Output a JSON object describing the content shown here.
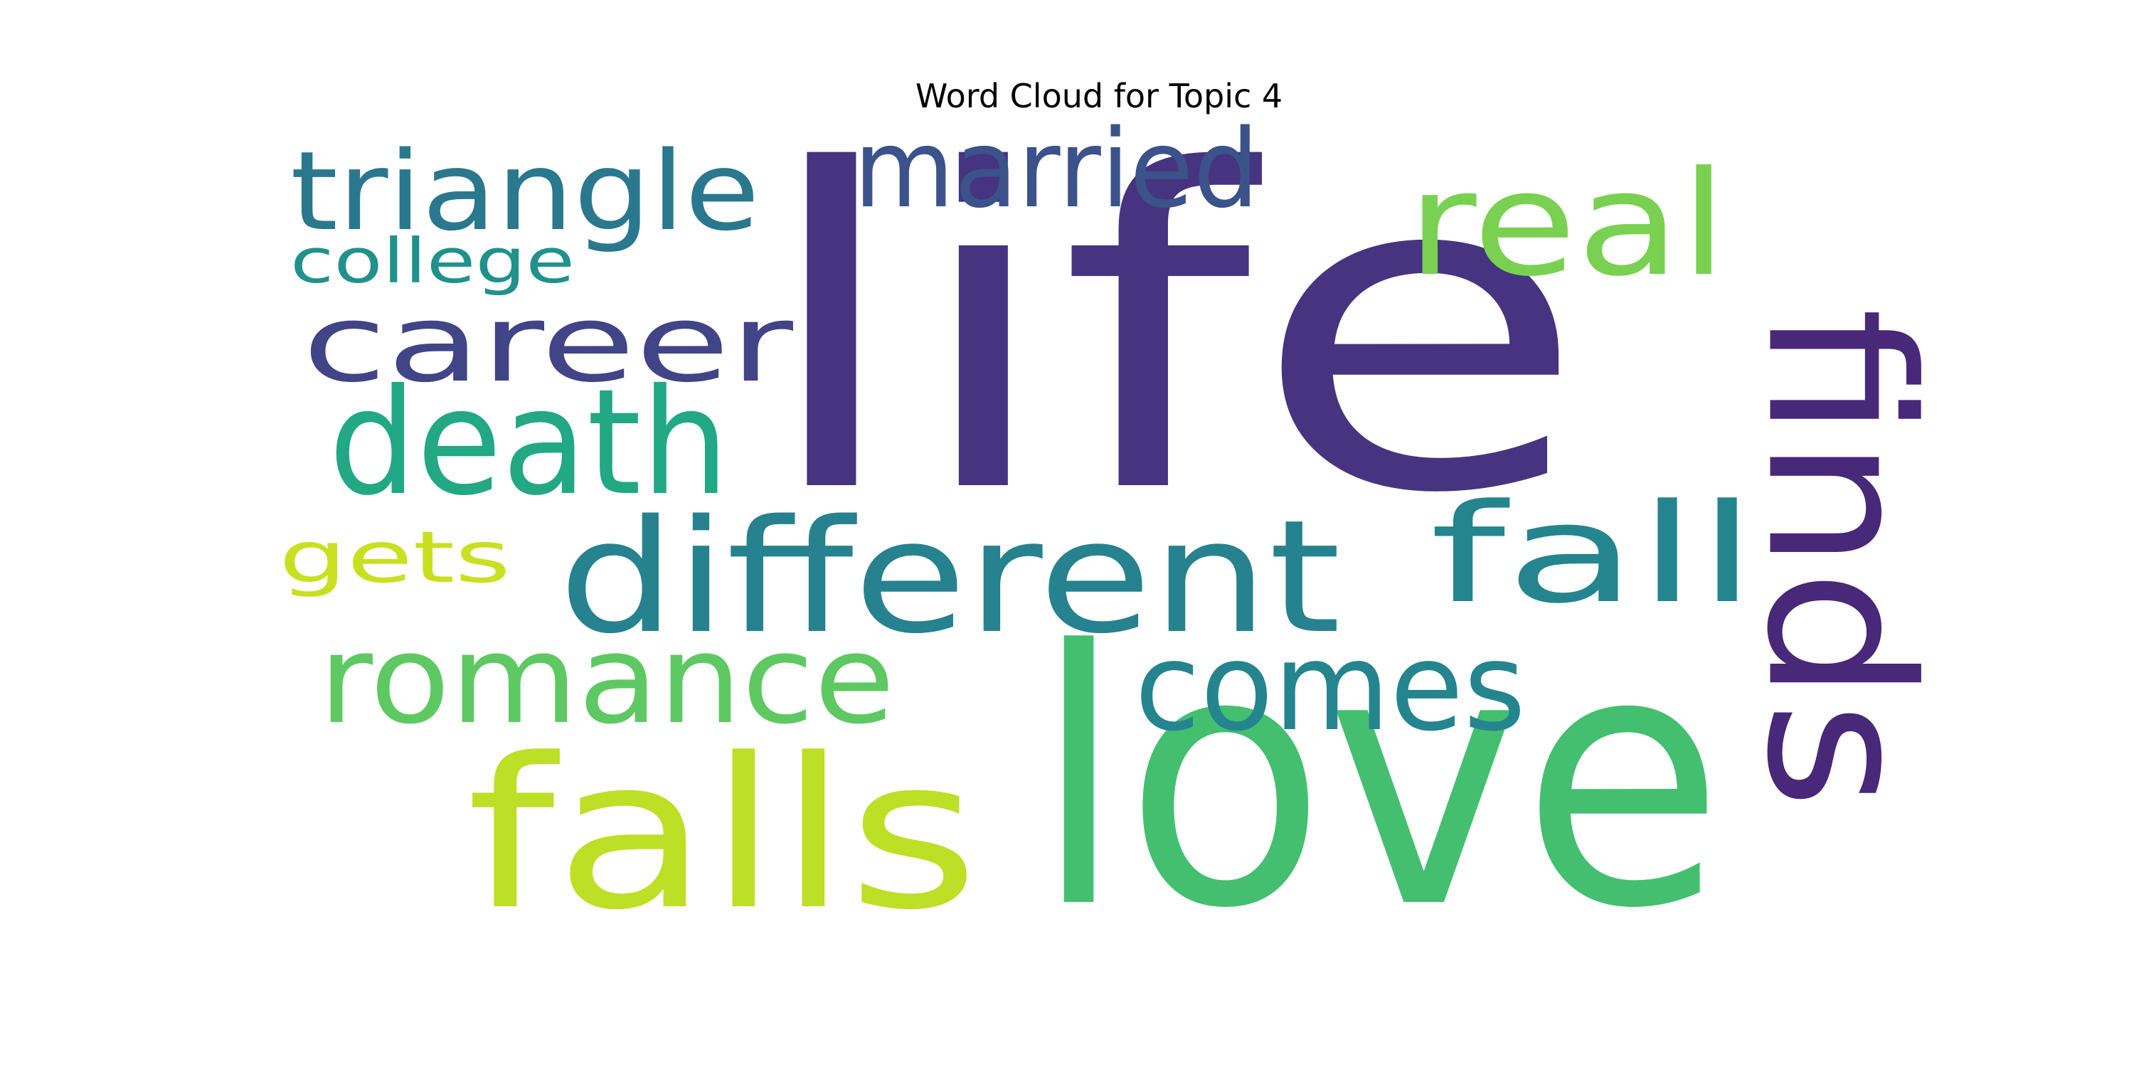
{
  "chart_data": {
    "type": "wordcloud",
    "title": "Word Cloud for Topic 4",
    "words": [
      {
        "text": "life",
        "weight": 1.0,
        "orientation": "horizontal",
        "color": "#463480"
      },
      {
        "text": "love",
        "weight": 0.88,
        "orientation": "horizontal",
        "color": "#44bf70"
      },
      {
        "text": "falls",
        "weight": 0.6,
        "orientation": "horizontal",
        "color": "#bddf26"
      },
      {
        "text": "finds",
        "weight": 0.52,
        "orientation": "vertical",
        "color": "#482878"
      },
      {
        "text": "different",
        "weight": 0.48,
        "orientation": "horizontal",
        "color": "#26828e"
      },
      {
        "text": "comes",
        "weight": 0.43,
        "orientation": "horizontal",
        "color": "#25858e"
      },
      {
        "text": "fall",
        "weight": 0.43,
        "orientation": "horizontal",
        "color": "#25858e"
      },
      {
        "text": "romance",
        "weight": 0.42,
        "orientation": "horizontal",
        "color": "#5ec962"
      },
      {
        "text": "death",
        "weight": 0.42,
        "orientation": "horizontal",
        "color": "#22a884"
      },
      {
        "text": "real",
        "weight": 0.39,
        "orientation": "horizontal",
        "color": "#7ad151"
      },
      {
        "text": "career",
        "weight": 0.39,
        "orientation": "horizontal",
        "color": "#414487"
      },
      {
        "text": "married",
        "weight": 0.33,
        "orientation": "horizontal",
        "color": "#3b528b"
      },
      {
        "text": "triangle",
        "weight": 0.33,
        "orientation": "horizontal",
        "color": "#2a788e"
      },
      {
        "text": "gets",
        "weight": 0.26,
        "orientation": "horizontal",
        "color": "#c8e020"
      },
      {
        "text": "college",
        "weight": 0.21,
        "orientation": "horizontal",
        "color": "#21918c"
      }
    ],
    "background": "#ffffff",
    "axes": "off"
  }
}
